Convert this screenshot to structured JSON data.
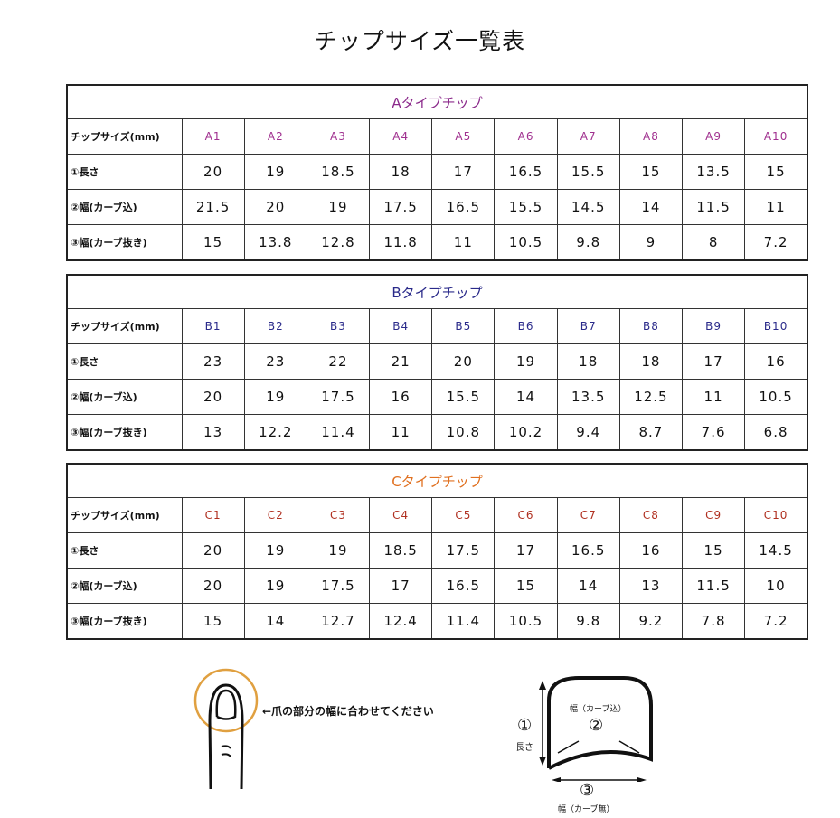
{
  "page_title": "チップサイズ一覧表",
  "tables": [
    {
      "title": "Aタイプチップ",
      "color": "#8b2a8b",
      "code_color": "#a0308f",
      "header_label": "チップサイズ(mm)",
      "sizes": [
        "A1",
        "A2",
        "A3",
        "A4",
        "A5",
        "A6",
        "A7",
        "A8",
        "A9",
        "A10"
      ],
      "rows": [
        {
          "label": "①長さ",
          "values": [
            "20",
            "19",
            "18.5",
            "18",
            "17",
            "16.5",
            "15.5",
            "15",
            "13.5",
            "15"
          ]
        },
        {
          "label": "②幅(カーブ込)",
          "values": [
            "21.5",
            "20",
            "19",
            "17.5",
            "16.5",
            "15.5",
            "14.5",
            "14",
            "11.5",
            "11"
          ]
        },
        {
          "label": "③幅(カーブ抜き)",
          "values": [
            "15",
            "13.8",
            "12.8",
            "11.8",
            "11",
            "10.5",
            "9.8",
            "9",
            "8",
            "7.2"
          ]
        }
      ]
    },
    {
      "title": "Bタイプチップ",
      "color": "#2a2a8a",
      "code_color": "#2a2a8a",
      "header_label": "チップサイズ(mm)",
      "sizes": [
        "B1",
        "B2",
        "B3",
        "B4",
        "B5",
        "B6",
        "B7",
        "B8",
        "B9",
        "B10"
      ],
      "rows": [
        {
          "label": "①長さ",
          "values": [
            "23",
            "23",
            "22",
            "21",
            "20",
            "19",
            "18",
            "18",
            "17",
            "16"
          ]
        },
        {
          "label": "②幅(カーブ込)",
          "values": [
            "20",
            "19",
            "17.5",
            "16",
            "15.5",
            "14",
            "13.5",
            "12.5",
            "11",
            "10.5"
          ]
        },
        {
          "label": "③幅(カーブ抜き)",
          "values": [
            "13",
            "12.2",
            "11.4",
            "11",
            "10.8",
            "10.2",
            "9.4",
            "8.7",
            "7.6",
            "6.8"
          ]
        }
      ]
    },
    {
      "title": "Cタイプチップ",
      "color": "#e07020",
      "code_color": "#b03020",
      "header_label": "チップサイズ(mm)",
      "sizes": [
        "C1",
        "C2",
        "C3",
        "C4",
        "C5",
        "C6",
        "C7",
        "C8",
        "C9",
        "C10"
      ],
      "rows": [
        {
          "label": "①長さ",
          "values": [
            "20",
            "19",
            "19",
            "18.5",
            "17.5",
            "17",
            "16.5",
            "16",
            "15",
            "14.5"
          ]
        },
        {
          "label": "②幅(カーブ込)",
          "values": [
            "20",
            "19",
            "17.5",
            "17",
            "16.5",
            "15",
            "14",
            "13",
            "11.5",
            "10"
          ]
        },
        {
          "label": "③幅(カーブ抜き)",
          "values": [
            "15",
            "14",
            "12.7",
            "12.4",
            "11.4",
            "10.5",
            "9.8",
            "9.2",
            "7.8",
            "7.2"
          ]
        }
      ]
    }
  ],
  "illustration": {
    "finger_note": "←爪の部分の幅に合わせてください",
    "circle_color": "#e0a040",
    "len_num": "①",
    "len_label": "長さ",
    "w1_label": "幅（カーブ込）",
    "w1_num": "②",
    "w2_num": "③",
    "w2_label": "幅（カーブ無）"
  }
}
